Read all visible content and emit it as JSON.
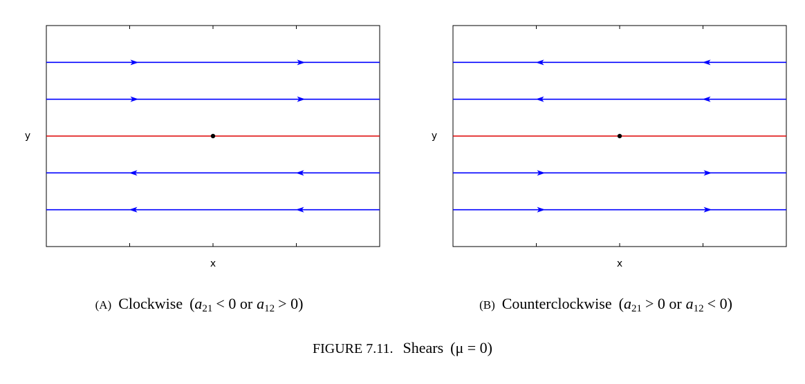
{
  "figure": {
    "number_label": "FIGURE 7.11.",
    "title_text": "Shears",
    "title_math": "(μ = 0)"
  },
  "chart_data": [
    {
      "type": "line",
      "id": "A",
      "xlabel": "x",
      "ylabel": "y",
      "xlim": [
        -2,
        2
      ],
      "ylim": [
        -3,
        3
      ],
      "xticks": [
        -1,
        0,
        1
      ],
      "yticks": [
        -2,
        -1,
        0,
        1,
        2
      ],
      "caption_tag": "(A)",
      "caption_text": "Clockwise",
      "caption_math": {
        "open": "(",
        "a": "a",
        "s1": "21",
        "rel1": "< 0 or",
        "b": "a",
        "s2": "12",
        "rel2": "> 0)"
      },
      "equilibrium": {
        "x": 0,
        "y": 0
      },
      "series": [
        {
          "name": "trajectory y=2",
          "y": 2,
          "direction": "right",
          "color": "#0000ff"
        },
        {
          "name": "trajectory y=1",
          "y": 1,
          "direction": "right",
          "color": "#0000ff"
        },
        {
          "name": "equilibrium line y=0",
          "y": 0,
          "direction": "none",
          "color": "#dd0000"
        },
        {
          "name": "trajectory y=-1",
          "y": -1,
          "direction": "left",
          "color": "#0000ff"
        },
        {
          "name": "trajectory y=-2",
          "y": -2,
          "direction": "left",
          "color": "#0000ff"
        }
      ]
    },
    {
      "type": "line",
      "id": "B",
      "xlabel": "x",
      "ylabel": "y",
      "xlim": [
        -2,
        2
      ],
      "ylim": [
        -3,
        3
      ],
      "xticks": [
        -1,
        0,
        1
      ],
      "yticks": [
        -2,
        -1,
        0,
        1,
        2
      ],
      "caption_tag": "(B)",
      "caption_text": "Counterclockwise",
      "caption_math": {
        "open": "(",
        "a": "a",
        "s1": "21",
        "rel1": "> 0 or",
        "b": "a",
        "s2": "12",
        "rel2": "< 0)"
      },
      "equilibrium": {
        "x": 0,
        "y": 0
      },
      "series": [
        {
          "name": "trajectory y=2",
          "y": 2,
          "direction": "left",
          "color": "#0000ff"
        },
        {
          "name": "trajectory y=1",
          "y": 1,
          "direction": "left",
          "color": "#0000ff"
        },
        {
          "name": "equilibrium line y=0",
          "y": 0,
          "direction": "none",
          "color": "#dd0000"
        },
        {
          "name": "trajectory y=-1",
          "y": -1,
          "direction": "right",
          "color": "#0000ff"
        },
        {
          "name": "trajectory y=-2",
          "y": -2,
          "direction": "right",
          "color": "#0000ff"
        }
      ]
    }
  ]
}
